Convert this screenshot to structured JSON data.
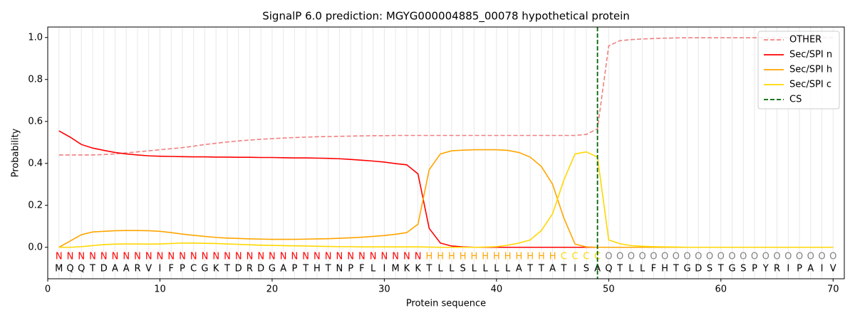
{
  "chart_data": {
    "type": "line",
    "title": "SignalP 6.0 prediction: MGYG000004885_00078 hypothetical protein",
    "xlabel": "Protein sequence",
    "ylabel": "Probability",
    "x": [
      1,
      2,
      3,
      4,
      5,
      6,
      7,
      8,
      9,
      10,
      11,
      12,
      13,
      14,
      15,
      16,
      17,
      18,
      19,
      20,
      21,
      22,
      23,
      24,
      25,
      26,
      27,
      28,
      29,
      30,
      31,
      32,
      33,
      34,
      35,
      36,
      37,
      38,
      39,
      40,
      41,
      42,
      43,
      44,
      45,
      46,
      47,
      48,
      49,
      50,
      51,
      52,
      53,
      54,
      55,
      56,
      57,
      58,
      59,
      60,
      61,
      62,
      63,
      64,
      65,
      66,
      67,
      68,
      69,
      70
    ],
    "series": [
      {
        "name": "OTHER",
        "color": "#f08080",
        "dash": true,
        "values": [
          0.44,
          0.44,
          0.44,
          0.44,
          0.442,
          0.445,
          0.45,
          0.455,
          0.46,
          0.465,
          0.47,
          0.475,
          0.482,
          0.49,
          0.496,
          0.502,
          0.507,
          0.511,
          0.515,
          0.518,
          0.521,
          0.523,
          0.525,
          0.527,
          0.528,
          0.529,
          0.53,
          0.531,
          0.532,
          0.532,
          0.533,
          0.533,
          0.533,
          0.533,
          0.533,
          0.533,
          0.533,
          0.533,
          0.533,
          0.533,
          0.533,
          0.533,
          0.533,
          0.533,
          0.533,
          0.533,
          0.533,
          0.538,
          0.565,
          0.96,
          0.985,
          0.99,
          0.993,
          0.995,
          0.997,
          0.998,
          0.999,
          0.999,
          0.999,
          0.999,
          0.999,
          0.999,
          0.999,
          0.999,
          0.999,
          0.999,
          0.999,
          0.999,
          0.999,
          0.999
        ]
      },
      {
        "name": "Sec/SPI n",
        "color": "#ff0000",
        "dash": false,
        "values": [
          0.555,
          0.525,
          0.49,
          0.473,
          0.462,
          0.452,
          0.445,
          0.44,
          0.436,
          0.434,
          0.433,
          0.432,
          0.431,
          0.431,
          0.43,
          0.43,
          0.429,
          0.429,
          0.428,
          0.428,
          0.427,
          0.426,
          0.426,
          0.425,
          0.424,
          0.422,
          0.419,
          0.415,
          0.411,
          0.406,
          0.399,
          0.393,
          0.35,
          0.09,
          0.02,
          0.006,
          0.002,
          0,
          0,
          0,
          0,
          0,
          0,
          0,
          0,
          0,
          0,
          0,
          0,
          0,
          0,
          0,
          0,
          0,
          0,
          0,
          0,
          0,
          0,
          0,
          0,
          0,
          0,
          0,
          0,
          0,
          0,
          0,
          0,
          0
        ]
      },
      {
        "name": "Sec/SPI h",
        "color": "#ffa500",
        "dash": false,
        "values": [
          0,
          0.03,
          0.06,
          0.073,
          0.076,
          0.079,
          0.08,
          0.08,
          0.079,
          0.076,
          0.07,
          0.063,
          0.057,
          0.052,
          0.047,
          0.044,
          0.042,
          0.04,
          0.039,
          0.038,
          0.038,
          0.038,
          0.039,
          0.04,
          0.041,
          0.043,
          0.045,
          0.048,
          0.052,
          0.056,
          0.062,
          0.07,
          0.11,
          0.37,
          0.445,
          0.46,
          0.463,
          0.465,
          0.465,
          0.465,
          0.462,
          0.452,
          0.43,
          0.385,
          0.3,
          0.14,
          0.015,
          0.002,
          0,
          0,
          0,
          0,
          0,
          0,
          0,
          0,
          0,
          0,
          0,
          0,
          0,
          0,
          0,
          0,
          0,
          0,
          0,
          0,
          0,
          0
        ]
      },
      {
        "name": "Sec/SPI c",
        "color": "#ffd700",
        "dash": false,
        "values": [
          0,
          0,
          0.003,
          0.008,
          0.013,
          0.015,
          0.016,
          0.016,
          0.015,
          0.016,
          0.018,
          0.02,
          0.02,
          0.019,
          0.018,
          0.016,
          0.014,
          0.012,
          0.01,
          0.009,
          0.008,
          0.007,
          0.006,
          0.005,
          0.004,
          0.003,
          0.003,
          0.002,
          0.002,
          0.002,
          0.002,
          0.002,
          0.002,
          0.001,
          0,
          0,
          0,
          0,
          0.001,
          0.003,
          0.01,
          0.02,
          0.035,
          0.08,
          0.16,
          0.32,
          0.445,
          0.455,
          0.43,
          0.035,
          0.017,
          0.008,
          0.005,
          0.003,
          0.002,
          0.001,
          0,
          0,
          0,
          0,
          0,
          0,
          0,
          0,
          0,
          0,
          0,
          0,
          0,
          0
        ]
      }
    ],
    "cs": {
      "name": "CS",
      "x": 49,
      "color": "#006400"
    },
    "regions": [
      "N",
      "N",
      "N",
      "N",
      "N",
      "N",
      "N",
      "N",
      "N",
      "N",
      "N",
      "N",
      "N",
      "N",
      "N",
      "N",
      "N",
      "N",
      "N",
      "N",
      "N",
      "N",
      "N",
      "N",
      "N",
      "N",
      "N",
      "N",
      "N",
      "N",
      "N",
      "N",
      "N",
      "H",
      "H",
      "H",
      "H",
      "H",
      "H",
      "H",
      "H",
      "H",
      "H",
      "H",
      "H",
      "C",
      "C",
      "C",
      "C",
      "O",
      "O",
      "O",
      "O",
      "O",
      "O",
      "O",
      "O",
      "O",
      "O",
      "O",
      "O",
      "O",
      "O",
      "O",
      "O",
      "O",
      "O",
      "O",
      "O",
      "O"
    ],
    "region_colors": {
      "N": "#ff0000",
      "H": "#ffa500",
      "C": "#ffd700",
      "O": "#808080"
    },
    "sequence": [
      "M",
      "Q",
      "Q",
      "T",
      "D",
      "A",
      "A",
      "R",
      "V",
      "I",
      "F",
      "P",
      "C",
      "G",
      "K",
      "T",
      "D",
      "R",
      "D",
      "G",
      "A",
      "P",
      "T",
      "H",
      "T",
      "N",
      "P",
      "F",
      "L",
      "I",
      "M",
      "K",
      "K",
      "T",
      "L",
      "L",
      "S",
      "L",
      "L",
      "L",
      "L",
      "A",
      "T",
      "T",
      "A",
      "T",
      "I",
      "S",
      "A",
      "Q",
      "T",
      "L",
      "L",
      "F",
      "H",
      "T",
      "G",
      "D",
      "S",
      "T",
      "G",
      "S",
      "P",
      "Y",
      "R",
      "I",
      "P",
      "A",
      "I",
      "V"
    ],
    "xlim": [
      0,
      71
    ],
    "ylim": [
      -0.15,
      1.05
    ],
    "xticks": [
      0,
      10,
      20,
      30,
      40,
      50,
      60,
      70
    ],
    "yticks": [
      {
        "value": 0,
        "label": "0.0"
      },
      {
        "value": 0.2,
        "label": "0.2"
      },
      {
        "value": 0.4,
        "label": "0.4"
      },
      {
        "value": 0.6,
        "label": "0.6"
      },
      {
        "value": 0.8,
        "label": "0.8"
      },
      {
        "value": 1,
        "label": "1.0"
      }
    ],
    "grid": true,
    "legend": "upper right"
  }
}
